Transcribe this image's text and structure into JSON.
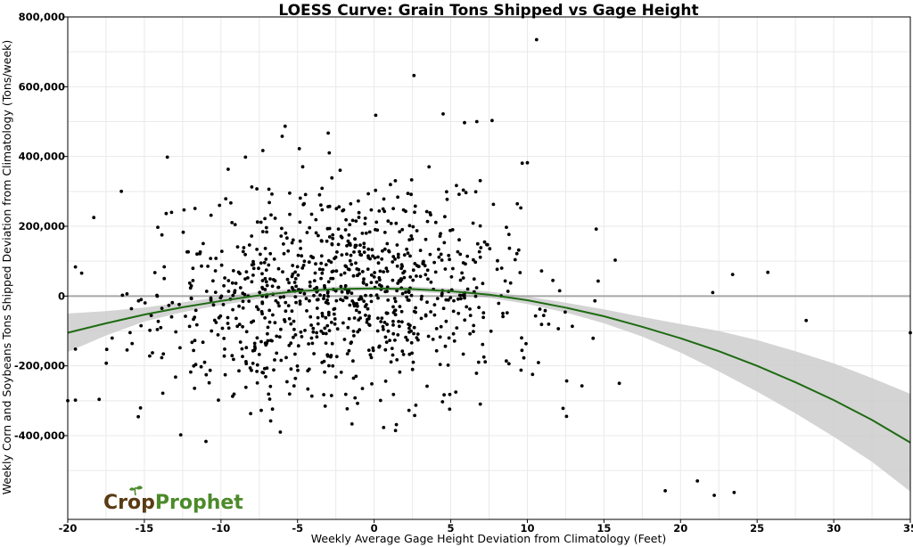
{
  "chart_data": {
    "type": "scatter",
    "title": "LOESS Curve: Grain Tons Shipped vs Gage Height",
    "xlabel": "Weekly Average Gage Height Deviation from Climatology (Feet)",
    "ylabel": "Weekly Corn and Soybeans Tons Shipped Deviation from Climatology (Tons/week)",
    "xlim": [
      -20,
      35
    ],
    "ylim": [
      -640000,
      800000
    ],
    "xticks": [
      -20,
      -15,
      -10,
      -5,
      0,
      5,
      10,
      15,
      20,
      25,
      30,
      35
    ],
    "yticks": [
      800000,
      600000,
      400000,
      200000,
      0,
      -200000,
      -400000
    ],
    "xtick_labels": [
      "-20",
      "-15",
      "-10",
      "-5",
      "0",
      "5",
      "10",
      "15",
      "20",
      "25",
      "30",
      "35"
    ],
    "ytick_labels": [
      "800,000",
      "600,000",
      "400,000",
      "200,000",
      "0",
      "-200,000",
      "-400,000"
    ],
    "grid": true,
    "reference_line_y": 0,
    "loess": {
      "x": [
        -20,
        -17.5,
        -15,
        -12.5,
        -10,
        -7.5,
        -5,
        -2.5,
        0,
        2.5,
        5,
        7.5,
        10,
        12.5,
        15,
        17.5,
        20,
        22.5,
        25,
        27.5,
        30,
        32.5,
        35
      ],
      "y": [
        -105000,
        -78000,
        -53000,
        -32000,
        -14000,
        2000,
        14000,
        20000,
        22000,
        20000,
        14000,
        4000,
        -12000,
        -33000,
        -58000,
        -88000,
        -121000,
        -158000,
        -200000,
        -247000,
        -298000,
        -355000,
        -420000
      ],
      "lower": [
        -160000,
        -113000,
        -73000,
        -46000,
        -26000,
        -8000,
        6000,
        13000,
        16000,
        13000,
        6000,
        -5000,
        -23000,
        -47000,
        -78000,
        -116000,
        -162000,
        -216000,
        -274000,
        -336000,
        -403000,
        -475000,
        -560000
      ],
      "upper": [
        -50000,
        -43000,
        -33000,
        -18000,
        -2000,
        12000,
        22000,
        27000,
        28000,
        27000,
        22000,
        13000,
        -1000,
        -19000,
        -38000,
        -60000,
        -80000,
        -100000,
        -126000,
        -158000,
        -193000,
        -235000,
        -280000
      ]
    },
    "points_generated": true,
    "points_count": 1000,
    "highlighted_points": [
      [
        10.6,
        735000
      ],
      [
        2.6,
        632000
      ],
      [
        4.5,
        522000
      ],
      [
        0.1,
        518000
      ],
      [
        6.7,
        500000
      ],
      [
        5.9,
        497000
      ],
      [
        7.7,
        503000
      ],
      [
        -3,
        467000
      ],
      [
        -6,
        458000
      ],
      [
        -13.5,
        398000
      ],
      [
        10,
        382000
      ],
      [
        -8.4,
        398000
      ],
      [
        28.2,
        -70000
      ],
      [
        35,
        -105000
      ],
      [
        25.7,
        68000
      ],
      [
        22.1,
        10000
      ],
      [
        23.4,
        62000
      ],
      [
        -19.5,
        -298000
      ],
      [
        -18.3,
        225000
      ],
      [
        -16.5,
        300000
      ],
      [
        19,
        -558000
      ],
      [
        22.2,
        -571000
      ],
      [
        23.5,
        -563000
      ],
      [
        21.1,
        -530000
      ],
      [
        -20,
        -300000
      ]
    ],
    "seed": 7
  },
  "logo": {
    "crop": "Crop",
    "prophet": "Prophet"
  }
}
